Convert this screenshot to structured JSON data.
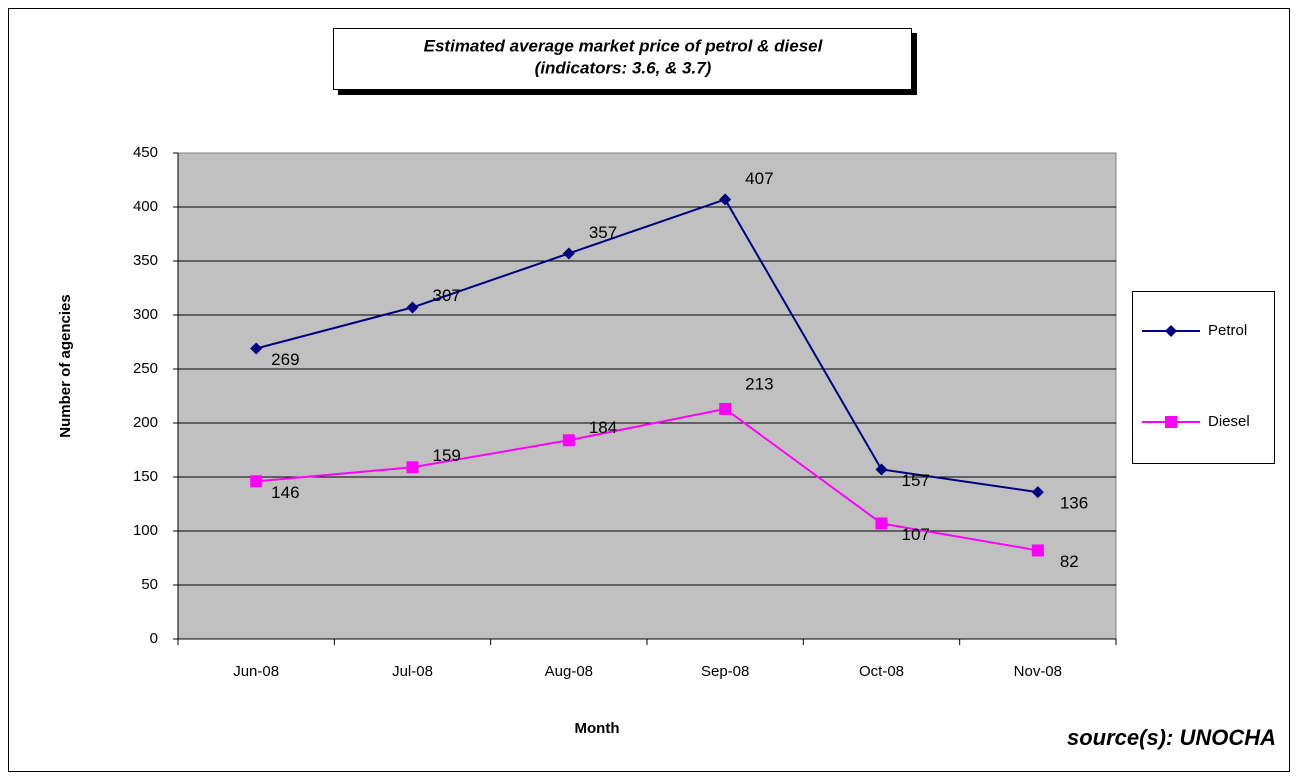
{
  "chart_data": {
    "type": "line",
    "title": "Estimated average market price of petrol & diesel",
    "subtitle": "(indicators:  3.6, & 3.7)",
    "x_label": "Month",
    "y_label": "Number of agencies",
    "source": "source(s): UNOCHA",
    "categories": [
      "Jun-08",
      "Jul-08",
      "Aug-08",
      "Sep-08",
      "Oct-08",
      "Nov-08"
    ],
    "series": [
      {
        "name": "Petrol",
        "color": "#000080",
        "marker": "diamond",
        "values": [
          269,
          307,
          357,
          407,
          157,
          136
        ]
      },
      {
        "name": "Diesel",
        "color": "#ff00ff",
        "marker": "square",
        "values": [
          146,
          159,
          184,
          213,
          107,
          82
        ]
      }
    ],
    "ylim": [
      0,
      450
    ],
    "yticks": [
      0,
      50,
      100,
      150,
      200,
      250,
      300,
      350,
      400,
      450
    ],
    "grid": true,
    "legend": "right"
  }
}
